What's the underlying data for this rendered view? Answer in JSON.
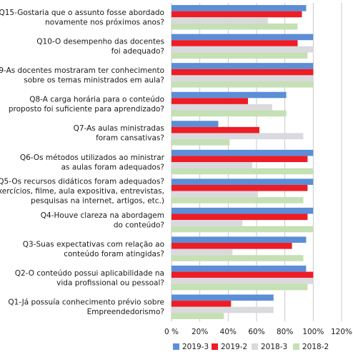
{
  "chart_data": {
    "type": "bar",
    "orientation": "horizontal",
    "categories": [
      [
        "Q15-Gostaria que o assunto fosse abordado",
        "novamente nos próximos anos?"
      ],
      [
        "Q10-O desempenho das docentes",
        "foi adequado?"
      ],
      [
        "Q9-As docentes mostraram ter conhecimento",
        "sobre os temas ministrados em aula?"
      ],
      [
        "Q8-A carga horária para o conteúdo",
        "proposto foi suficiente para aprendizado?"
      ],
      [
        "Q7-As aulas ministradas",
        "foram cansativas?"
      ],
      [
        "Q6-Os métodos utilizados ao ministrar",
        "as aulas foram adequados?"
      ],
      [
        "Q5-Os recursos didáticos foram adequados?",
        "(exercícios, filme, aula expositiva, entrevistas,",
        "pesquisas na internet, artigos, etc.)"
      ],
      [
        "Q4-Houve clareza na abordagem",
        "do conteúdo?"
      ],
      [
        "Q3-Suas expectativas com relação ao",
        "conteúdo foram atingidas?"
      ],
      [
        "Q2-O conteúdo possui aplicabilidade na",
        "vida profissional ou pessoal?"
      ],
      [
        "Q1-Já possuía conhecimento prévio sobre",
        "Empreendedorismo?"
      ]
    ],
    "series": [
      {
        "name": "2019-3",
        "color": "#5b8ed6",
        "values": [
          95,
          100,
          100,
          81,
          33,
          100,
          100,
          100,
          95,
          95,
          72
        ]
      },
      {
        "name": "2019-2",
        "color": "#ee1c25",
        "values": [
          92,
          89,
          100,
          54,
          62,
          96,
          96,
          96,
          85,
          100,
          42
        ]
      },
      {
        "name": "2018-3",
        "color": "#d9d9de",
        "values": [
          68,
          100,
          100,
          71,
          93,
          57,
          61,
          50,
          43,
          100,
          72
        ]
      },
      {
        "name": "2018-2",
        "color": "#c5e0b4",
        "values": [
          89,
          96,
          100,
          81,
          41,
          100,
          93,
          100,
          93,
          96,
          37
        ]
      }
    ],
    "xaxis": {
      "ticks": [
        0,
        20,
        40,
        60,
        80,
        100,
        120
      ],
      "tick_labels": [
        "0 %",
        "20%",
        "40%",
        "60%",
        "80%",
        "100%",
        "120%"
      ],
      "range": [
        0,
        120
      ]
    },
    "grid": true,
    "legend": "bottom"
  }
}
